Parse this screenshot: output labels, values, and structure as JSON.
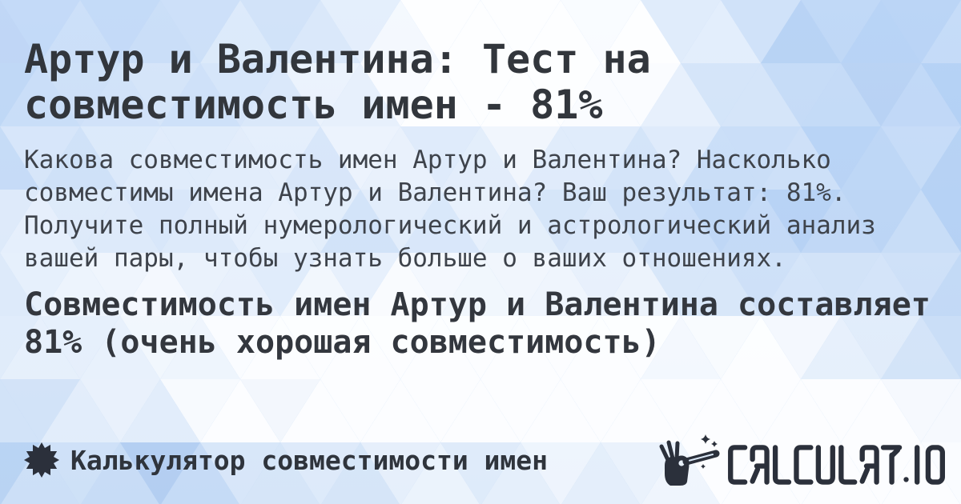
{
  "page": {
    "title_lines": [
      "Артур и Валентина: Тест на",
      "совместимость имен - 81%"
    ],
    "description_lines": [
      "Какова совместимость имен Артур и Валентина? Насколько",
      "совместимы имена Артур и Валентина? Ваш результат: 81%.",
      "Получите полный нумерологический и астрологический анализ",
      "вашей пары, чтобы узнать больше о ваших отношениях."
    ],
    "result_lines": [
      "Совместимость имен Артур и Валентина составляет",
      "81% (очень хорошая совместимость)"
    ],
    "compatibility_percent": "81%"
  },
  "footer": {
    "label": "Калькулятор совместимости имен",
    "logo_text": "CALCULAT.IO"
  },
  "icons": {
    "badge": "starburst-badge-icon",
    "brand": "magic-wand-hand-icon"
  },
  "colors": {
    "background_base_top": "#aecdf5",
    "background_base_bottom": "#a2c5f0",
    "pattern_light": "#ffffff",
    "pattern_deep": "#6f9fe2",
    "title_text": "#32363c",
    "body_text": "#3e434b",
    "result_text": "#33373e",
    "footer_text": "#2f343c",
    "brand_dark": "#2b303b"
  }
}
